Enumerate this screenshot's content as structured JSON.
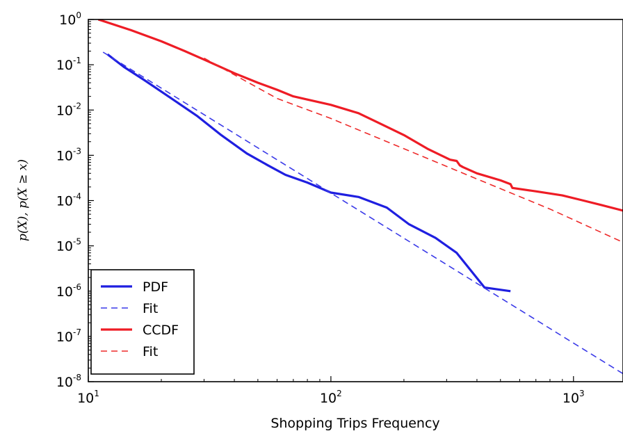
{
  "chart_data": {
    "type": "line",
    "title": "",
    "xlabel": "Shopping Trips Frequency",
    "ylabel": "p(X),  p(X ≥ x)",
    "xscale": "log",
    "yscale": "log",
    "xlim": [
      10,
      1600
    ],
    "ylim": [
      1e-08,
      1
    ],
    "grid": false,
    "legend_position": "lower-left",
    "x_ticks": [
      {
        "value": 10,
        "base": "10",
        "exp": "1"
      },
      {
        "value": 100,
        "base": "10",
        "exp": "2"
      },
      {
        "value": 1000,
        "base": "10",
        "exp": "3"
      }
    ],
    "y_ticks": [
      {
        "value": 1,
        "base": "10",
        "exp": "0"
      },
      {
        "value": 0.1,
        "base": "10",
        "exp": "-1"
      },
      {
        "value": 0.01,
        "base": "10",
        "exp": "-2"
      },
      {
        "value": 0.001,
        "base": "10",
        "exp": "-3"
      },
      {
        "value": 0.0001,
        "base": "10",
        "exp": "-4"
      },
      {
        "value": 1e-05,
        "base": "10",
        "exp": "-5"
      },
      {
        "value": 1e-06,
        "base": "10",
        "exp": "-6"
      },
      {
        "value": 1e-07,
        "base": "10",
        "exp": "-7"
      },
      {
        "value": 1e-08,
        "base": "10",
        "exp": "-8"
      }
    ],
    "series": [
      {
        "name": "PDF",
        "color": "#1f1fe0",
        "style": "solid",
        "x": [
          12,
          14,
          17,
          22,
          28,
          35,
          45,
          55,
          65,
          80,
          100,
          130,
          170,
          210,
          270,
          330,
          430,
          550
        ],
        "y": [
          0.17,
          0.09,
          0.046,
          0.018,
          0.0075,
          0.0029,
          0.0011,
          0.0006,
          0.00037,
          0.00025,
          0.00015,
          0.00012,
          7e-05,
          3e-05,
          1.5e-05,
          7e-06,
          1.2e-06,
          1e-06
        ]
      },
      {
        "name": "Fit",
        "color": "#3a3ae8",
        "style": "dashed",
        "x": [
          11.5,
          1600
        ],
        "y": [
          0.19,
          1.5e-08
        ]
      },
      {
        "name": "CCDF",
        "color": "#ee1c25",
        "style": "solid",
        "x": [
          11,
          15,
          20,
          25,
          30,
          40,
          50,
          60,
          70,
          80,
          100,
          130,
          160,
          200,
          250,
          310,
          330,
          340,
          350,
          400,
          500,
          550,
          560,
          700,
          900,
          1100,
          1300,
          1600
        ],
        "y": [
          1,
          0.58,
          0.33,
          0.2,
          0.13,
          0.065,
          0.04,
          0.028,
          0.02,
          0.017,
          0.013,
          0.0085,
          0.005,
          0.0028,
          0.0014,
          0.0008,
          0.00075,
          0.0006,
          0.00055,
          0.0004,
          0.00028,
          0.00023,
          0.00019,
          0.00016,
          0.00013,
          0.0001,
          8e-05,
          6e-05
        ]
      },
      {
        "name": "Fit",
        "color": "#ee2a2a",
        "style": "dashed",
        "x": [
          30,
          60,
          100,
          200,
          400,
          800,
          1600
        ],
        "y": [
          0.14,
          0.018,
          0.0065,
          0.0014,
          0.0003,
          6.5e-05,
          1.2e-05
        ]
      }
    ]
  }
}
